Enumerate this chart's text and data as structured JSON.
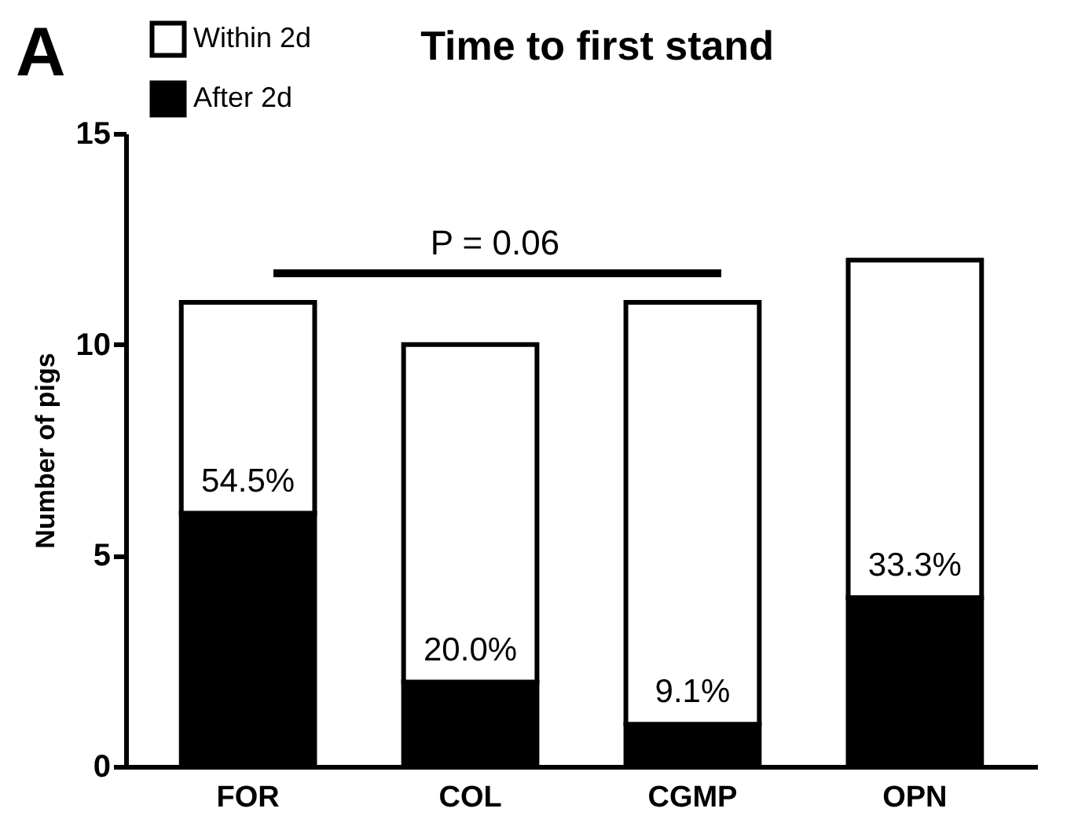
{
  "chart_data": {
    "type": "bar",
    "title": "Time to first stand",
    "ylabel": "Number of pigs",
    "categories": [
      "FOR",
      "COL",
      "CGMP",
      "OPN"
    ],
    "stacked": true,
    "series": [
      {
        "name": "After 2d",
        "color": "#000000",
        "values": [
          6,
          2,
          1,
          4
        ]
      },
      {
        "name": "Within 2d",
        "color": "#ffffff",
        "values": [
          5,
          8,
          10,
          8
        ]
      }
    ],
    "ylim": [
      0,
      15
    ],
    "yticks": [
      0,
      5,
      10,
      15
    ],
    "grid": false,
    "legend": "top left",
    "annotations": [
      "A",
      "P = 0.06",
      {
        "text": "54.5%",
        "x": "FOR",
        "y": 6
      },
      {
        "text": "20.0%",
        "x": "COL",
        "y": 2
      },
      {
        "text": "9.1%",
        "x": "CGMP",
        "y": 1
      },
      {
        "text": "33.3%",
        "x": "OPN",
        "y": 4
      }
    ]
  }
}
